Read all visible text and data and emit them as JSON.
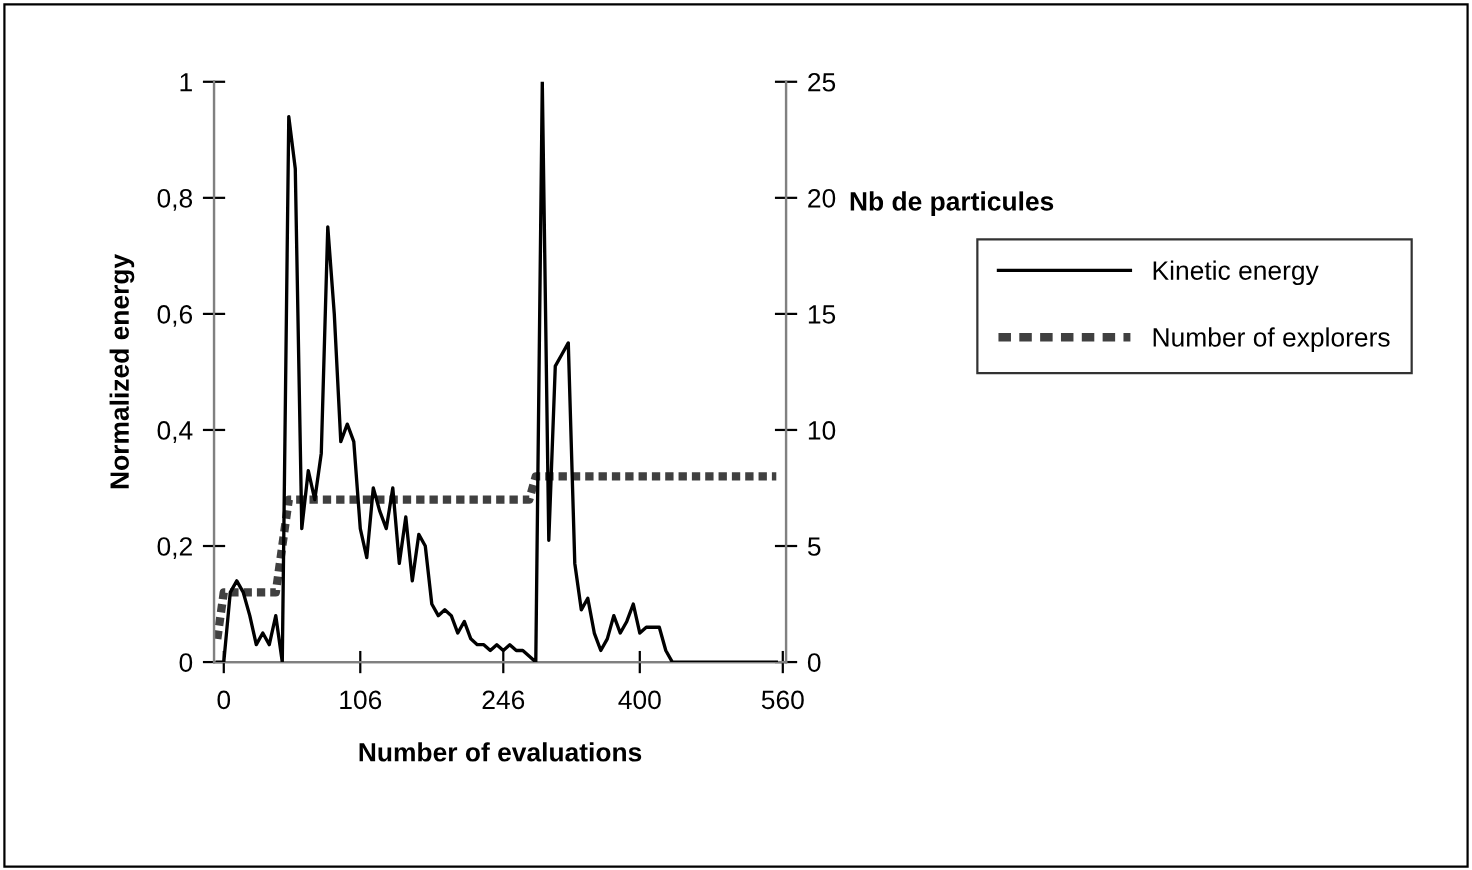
{
  "chart_data": {
    "type": "line",
    "xlabel": "Number of evaluations",
    "ylabel": "Normalized energy",
    "y2label": "Nb de particules",
    "categories": [
      null,
      "0",
      null,
      null,
      null,
      null,
      null,
      null,
      null,
      null,
      null,
      null,
      null,
      null,
      null,
      null,
      null,
      null,
      null,
      null,
      null,
      null,
      "106",
      null,
      null,
      null,
      null,
      null,
      null,
      null,
      null,
      null,
      null,
      null,
      null,
      null,
      null,
      null,
      null,
      null,
      null,
      null,
      null,
      null,
      "246",
      null,
      null,
      null,
      null,
      null,
      null,
      null,
      null,
      null,
      null,
      null,
      null,
      null,
      null,
      null,
      null,
      null,
      null,
      null,
      null,
      "400",
      null,
      null,
      null,
      null,
      null,
      null,
      null,
      null,
      null,
      null,
      null,
      null,
      null,
      null,
      null,
      null,
      null,
      null,
      null,
      null,
      null,
      "560"
    ],
    "series": [
      {
        "name": "Kinetic energy",
        "color": "#000000",
        "line_style": "solid",
        "values": [
          0,
          0,
          0.12,
          0.14,
          0.12,
          0.08,
          0.03,
          0.05,
          0.03,
          0.08,
          0,
          0.94,
          0.85,
          0.23,
          0.33,
          0.28,
          0.36,
          0.75,
          0.6,
          0.38,
          0.41,
          0.38,
          0.23,
          0.18,
          0.3,
          0.26,
          0.23,
          0.3,
          0.17,
          0.25,
          0.14,
          0.22,
          0.2,
          0.1,
          0.08,
          0.09,
          0.08,
          0.05,
          0.07,
          0.04,
          0.03,
          0.03,
          0.02,
          0.03,
          0.02,
          0.03,
          0.02,
          0.02,
          0.01,
          0,
          1.0,
          0.21,
          0.51,
          0.53,
          0.55,
          0.17,
          0.09,
          0.11,
          0.05,
          0.02,
          0.04,
          0.08,
          0.05,
          0.07,
          0.1,
          0.05,
          0.06,
          0.06,
          0.06,
          0.02,
          0,
          0,
          0,
          0,
          0,
          0,
          0,
          0,
          0,
          0,
          0,
          0,
          0,
          0,
          0,
          0,
          0,
          null
        ]
      },
      {
        "name": "Number of explorers",
        "color": "#404040",
        "line_style": "dashed",
        "axis": "y2",
        "values": [
          1,
          3,
          3,
          3,
          3,
          3,
          3,
          3,
          3,
          3,
          5,
          7,
          7,
          7,
          7,
          7,
          7,
          7,
          7,
          7,
          7,
          7,
          7,
          7,
          7,
          7,
          7,
          7,
          7,
          7,
          7,
          7,
          7,
          7,
          7,
          7,
          7,
          7,
          7,
          7,
          7,
          7,
          7,
          7,
          7,
          7,
          7,
          7,
          7,
          8,
          8,
          8,
          8,
          8,
          8,
          8,
          8,
          8,
          8,
          8,
          8,
          8,
          8,
          8,
          8,
          8,
          8,
          8,
          8,
          8,
          8,
          8,
          8,
          8,
          8,
          8,
          8,
          8,
          8,
          8,
          8,
          8,
          8,
          8,
          8,
          8,
          8,
          null
        ]
      }
    ],
    "ylim": [
      0,
      1
    ],
    "yticks": [
      0,
      {
        "value": 0.2,
        "label": "0,2"
      },
      {
        "value": 0.4,
        "label": "0,4"
      },
      {
        "value": 0.6,
        "label": "0,6"
      },
      {
        "value": 0.8,
        "label": "0,8"
      },
      1
    ],
    "y2lim": [
      0,
      25
    ],
    "y2ticks": [
      0,
      5,
      10,
      15,
      20,
      25
    ],
    "grid": false,
    "legend": "right",
    "marker": "none"
  }
}
